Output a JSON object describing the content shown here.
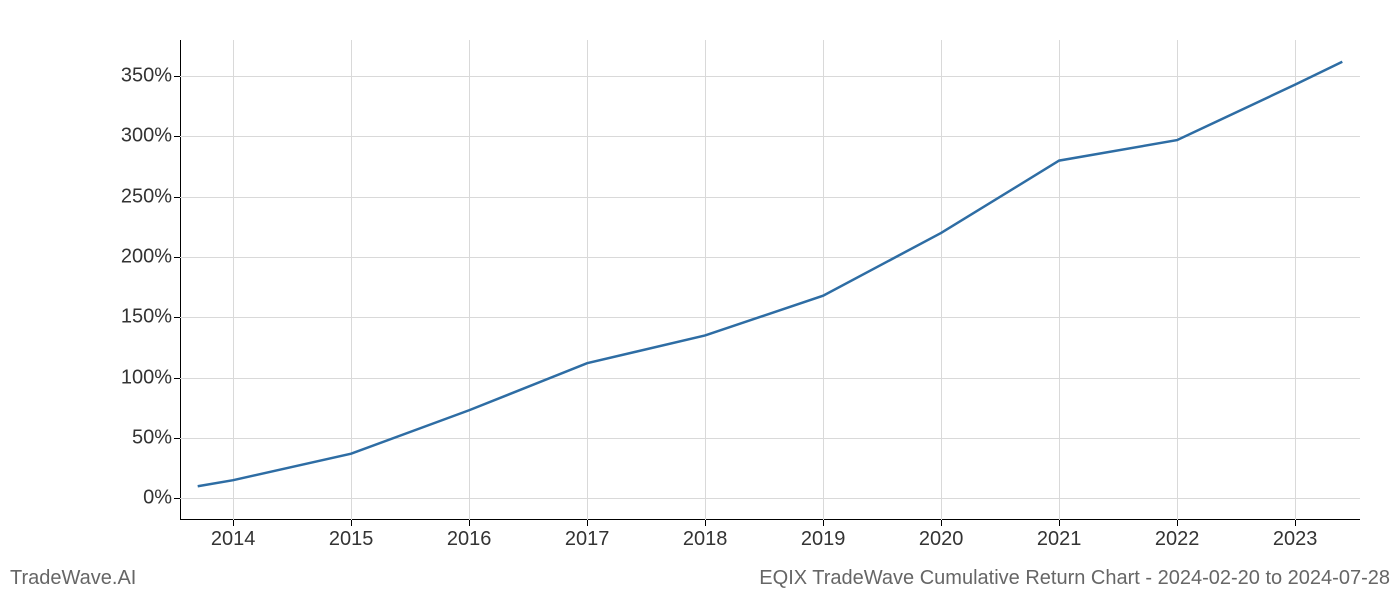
{
  "chart": {
    "type": "line",
    "x_values": [
      2013.7,
      2014,
      2015,
      2016,
      2017,
      2018,
      2019,
      2020,
      2021,
      2022,
      2023,
      2023.4
    ],
    "y_values": [
      10,
      15,
      37,
      73,
      112,
      135,
      168,
      220,
      280,
      297,
      343,
      362
    ],
    "x_ticks": [
      2014,
      2015,
      2016,
      2017,
      2018,
      2019,
      2020,
      2021,
      2022,
      2023
    ],
    "x_tick_labels": [
      "2014",
      "2015",
      "2016",
      "2017",
      "2018",
      "2019",
      "2020",
      "2021",
      "2022",
      "2023"
    ],
    "y_ticks": [
      0,
      50,
      100,
      150,
      200,
      250,
      300,
      350
    ],
    "y_tick_labels": [
      "0%",
      "50%",
      "100%",
      "150%",
      "200%",
      "250%",
      "300%",
      "350%"
    ],
    "xlim": [
      2013.55,
      2023.55
    ],
    "ylim": [
      -18,
      380
    ],
    "line_color": "#2e6da4",
    "line_width": 2.5,
    "grid_color": "#d9d9d9",
    "background_color": "#ffffff",
    "tick_fontsize": 20,
    "footer_fontsize": 20,
    "footer_color": "#666666"
  },
  "footer": {
    "left": "TradeWave.AI",
    "right": "EQIX TradeWave Cumulative Return Chart - 2024-02-20 to 2024-07-28"
  }
}
